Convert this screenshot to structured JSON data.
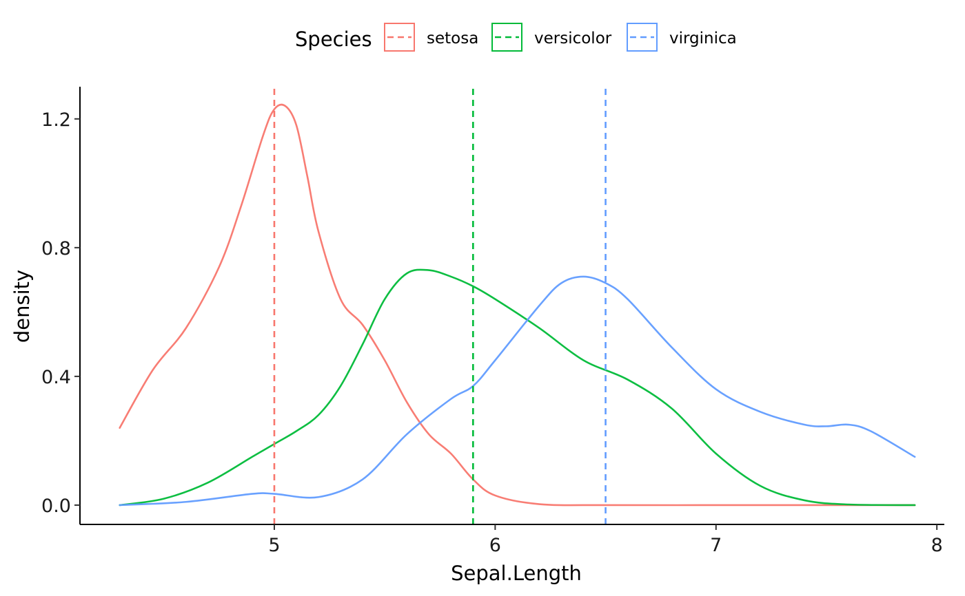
{
  "chart_data": {
    "type": "line",
    "xlabel": "Sepal.Length",
    "ylabel": "density",
    "xlim": [
      4.12,
      8.04
    ],
    "ylim": [
      -0.06,
      1.3
    ],
    "x_ticks": [
      5,
      6,
      7,
      8
    ],
    "x_tick_labels": [
      "5",
      "6",
      "7",
      "8"
    ],
    "y_ticks": [
      0.0,
      0.4,
      0.8,
      1.2
    ],
    "y_tick_labels": [
      "0.0",
      "0.4",
      "0.8",
      "1.2"
    ],
    "grid": false,
    "legend": {
      "title": "Species",
      "position": "top",
      "entries": [
        "setosa",
        "versicolor",
        "virginica"
      ]
    },
    "series": [
      {
        "name": "setosa",
        "color": "#F8766D",
        "mean": 5.0,
        "x": [
          4.3,
          4.45,
          4.6,
          4.75,
          4.85,
          4.95,
          5.0,
          5.05,
          5.1,
          5.15,
          5.2,
          5.3,
          5.4,
          5.5,
          5.6,
          5.7,
          5.8,
          5.9,
          6.0,
          6.2,
          6.5,
          7.0,
          7.5,
          7.9
        ],
        "y": [
          0.24,
          0.42,
          0.55,
          0.74,
          0.93,
          1.15,
          1.23,
          1.24,
          1.18,
          1.02,
          0.85,
          0.64,
          0.56,
          0.45,
          0.32,
          0.22,
          0.16,
          0.08,
          0.03,
          0.003,
          0.0,
          0.0,
          0.0,
          0.0
        ]
      },
      {
        "name": "versicolor",
        "color": "#00BA38",
        "mean": 5.9,
        "x": [
          4.3,
          4.5,
          4.7,
          4.9,
          5.0,
          5.1,
          5.2,
          5.3,
          5.4,
          5.5,
          5.6,
          5.7,
          5.8,
          5.9,
          6.0,
          6.2,
          6.4,
          6.6,
          6.8,
          7.0,
          7.2,
          7.4,
          7.6,
          7.9
        ],
        "y": [
          0.0,
          0.02,
          0.07,
          0.15,
          0.19,
          0.23,
          0.28,
          0.37,
          0.5,
          0.64,
          0.72,
          0.73,
          0.71,
          0.68,
          0.64,
          0.55,
          0.45,
          0.39,
          0.3,
          0.16,
          0.06,
          0.015,
          0.002,
          0.0
        ]
      },
      {
        "name": "virginica",
        "color": "#619CFF",
        "mean": 6.5,
        "x": [
          4.3,
          4.6,
          4.9,
          5.0,
          5.2,
          5.4,
          5.6,
          5.8,
          5.9,
          6.0,
          6.2,
          6.3,
          6.4,
          6.5,
          6.6,
          6.8,
          7.0,
          7.2,
          7.4,
          7.5,
          7.6,
          7.7,
          7.9
        ],
        "y": [
          0.0,
          0.01,
          0.035,
          0.035,
          0.025,
          0.08,
          0.22,
          0.33,
          0.37,
          0.45,
          0.62,
          0.69,
          0.71,
          0.69,
          0.64,
          0.49,
          0.36,
          0.29,
          0.25,
          0.245,
          0.25,
          0.23,
          0.15
        ]
      }
    ]
  }
}
